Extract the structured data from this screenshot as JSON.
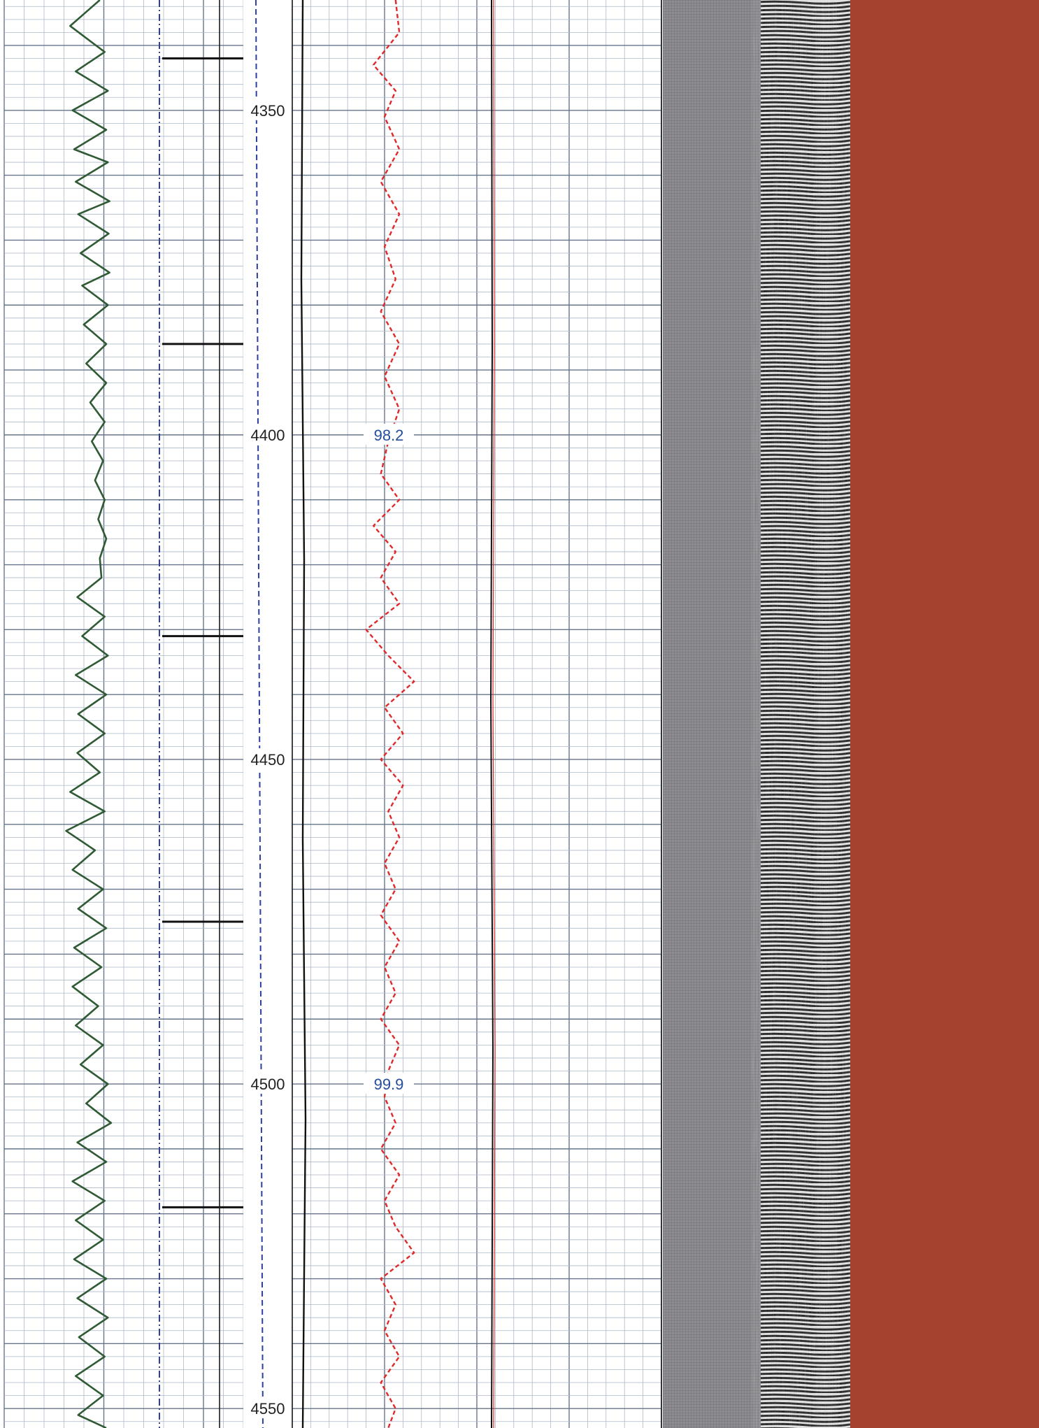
{
  "colors": {
    "grid_minor": "#aeb8c8",
    "grid_major": "#66748c",
    "gamma_curve": "#2f5a34",
    "caliper_dashdot": "#2f3fa0",
    "ticks": "#111111",
    "depth_dashed": "#2f3fa0",
    "red_dashed": "#e02a2a",
    "black_curve": "#111111",
    "value_label": "#234e9c",
    "gray_band": "#8e8e92",
    "vdl_dark": "#1a1a1a",
    "vdl_light": "#e8e8e8",
    "red_band": "#a4412f"
  },
  "chart_data": {
    "type": "line",
    "title": "",
    "y_axis": {
      "label": "",
      "range": [
        4333,
        4553
      ],
      "ticks": [
        4350,
        4400,
        4450,
        4500,
        4550
      ],
      "direction": "down"
    },
    "grid": true,
    "depth_labels": [
      "4350",
      "4400",
      "4450",
      "4500",
      "4550"
    ],
    "value_annotations": [
      {
        "depth": 4400,
        "text": "98.2"
      },
      {
        "depth": 4500,
        "text": "99.9"
      }
    ],
    "depth_ticks": [
      4342,
      4386,
      4431,
      4475,
      4519
    ],
    "series": [
      {
        "track": "left",
        "depth": [
          4333,
          4337,
          4341,
          4344,
          4347,
          4350,
          4353,
          4356,
          4358,
          4361,
          4364,
          4366,
          4369,
          4372,
          4375,
          4377,
          4380,
          4383,
          4386,
          4389,
          4392,
          4395,
          4398,
          4401,
          4404,
          4407,
          4410,
          4413,
          4416,
          4419,
          4422,
          4425,
          4428,
          4431,
          4434,
          4437,
          4440,
          4443,
          4446,
          4449,
          4452,
          4455,
          4458,
          4461,
          4464,
          4467,
          4470,
          4473,
          4476,
          4479,
          4482,
          4485,
          4488,
          4491,
          4494,
          4497,
          4500,
          4503,
          4506,
          4509,
          4512,
          4515,
          4518,
          4521,
          4524,
          4527,
          4530,
          4533,
          4536,
          4539,
          4542,
          4545,
          4548,
          4551,
          4553
        ],
        "values": [
          0.72,
          0.35,
          0.78,
          0.42,
          0.82,
          0.38,
          0.8,
          0.4,
          0.82,
          0.42,
          0.84,
          0.45,
          0.83,
          0.48,
          0.84,
          0.5,
          0.82,
          0.52,
          0.8,
          0.55,
          0.8,
          0.6,
          0.78,
          0.62,
          0.76,
          0.66,
          0.78,
          0.7,
          0.8,
          0.72,
          0.74,
          0.44,
          0.78,
          0.5,
          0.82,
          0.42,
          0.8,
          0.45,
          0.78,
          0.44,
          0.72,
          0.35,
          0.78,
          0.3,
          0.66,
          0.38,
          0.76,
          0.45,
          0.8,
          0.4,
          0.74,
          0.38,
          0.7,
          0.42,
          0.76,
          0.48,
          0.82,
          0.55,
          0.86,
          0.44,
          0.8,
          0.38,
          0.78,
          0.42,
          0.76,
          0.4,
          0.8,
          0.44,
          0.82,
          0.46,
          0.78,
          0.42,
          0.76,
          0.45,
          0.8
        ]
      },
      {
        "track": "right",
        "line": "dashed",
        "depth": [
          4333,
          4338,
          4343,
          4347,
          4351,
          4356,
          4361,
          4366,
          4371,
          4376,
          4381,
          4386,
          4391,
          4396,
          4401,
          4406,
          4410,
          4414,
          4418,
          4422,
          4426,
          4430,
          4434,
          4438,
          4442,
          4446,
          4450,
          4454,
          4458,
          4462,
          4466,
          4470,
          4474,
          4478,
          4482,
          4486,
          4490,
          4494,
          4498,
          4502,
          4506,
          4510,
          4514,
          4518,
          4522,
          4526,
          4530,
          4534,
          4538,
          4542,
          4546,
          4550,
          4553
        ],
        "values": [
          0.28,
          0.29,
          0.22,
          0.28,
          0.25,
          0.29,
          0.24,
          0.29,
          0.25,
          0.28,
          0.24,
          0.29,
          0.25,
          0.29,
          0.26,
          0.24,
          0.29,
          0.22,
          0.28,
          0.24,
          0.29,
          0.2,
          0.26,
          0.33,
          0.25,
          0.3,
          0.24,
          0.3,
          0.26,
          0.29,
          0.25,
          0.28,
          0.24,
          0.29,
          0.25,
          0.28,
          0.24,
          0.29,
          0.26,
          0.25,
          0.28,
          0.24,
          0.29,
          0.25,
          0.28,
          0.33,
          0.24,
          0.28,
          0.25,
          0.29,
          0.24,
          0.28,
          0.26
        ]
      }
    ]
  }
}
